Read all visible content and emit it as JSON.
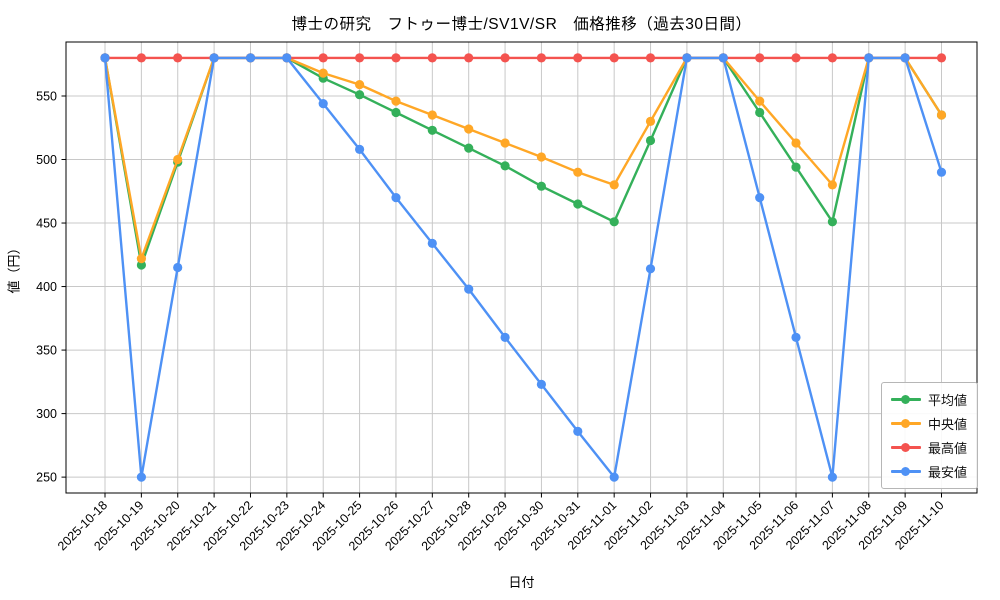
{
  "title": "博士の研究　フトゥー博士/SV1V/SR　価格推移（過去30日間）",
  "chart_data": {
    "type": "line",
    "x": [
      "2025-10-18",
      "2025-10-19",
      "2025-10-20",
      "2025-10-21",
      "2025-10-22",
      "2025-10-23",
      "2025-10-24",
      "2025-10-25",
      "2025-10-26",
      "2025-10-27",
      "2025-10-28",
      "2025-10-29",
      "2025-10-30",
      "2025-10-31",
      "2025-11-01",
      "2025-11-02",
      "2025-11-03",
      "2025-11-04",
      "2025-11-05",
      "2025-11-06",
      "2025-11-07",
      "2025-11-08",
      "2025-11-09",
      "2025-11-10"
    ],
    "series": [
      {
        "name": "平均値",
        "color": "#34b05a",
        "values": [
          580,
          417,
          498,
          580,
          580,
          580,
          564,
          551,
          537,
          523,
          509,
          495,
          479,
          465,
          451,
          515,
          580,
          580,
          537,
          494,
          451,
          580,
          580,
          535
        ]
      },
      {
        "name": "中央値",
        "color": "#ffa726",
        "values": [
          580,
          422,
          500,
          580,
          580,
          580,
          568,
          559,
          546,
          535,
          524,
          513,
          502,
          490,
          480,
          530,
          580,
          580,
          546,
          513,
          480,
          580,
          580,
          535
        ]
      },
      {
        "name": "最高値",
        "color": "#f4534f",
        "values": [
          580,
          580,
          580,
          580,
          580,
          580,
          580,
          580,
          580,
          580,
          580,
          580,
          580,
          580,
          580,
          580,
          580,
          580,
          580,
          580,
          580,
          580,
          580,
          580
        ]
      },
      {
        "name": "最安値",
        "color": "#4e91f5",
        "values": [
          580,
          250,
          415,
          580,
          580,
          580,
          544,
          508,
          470,
          434,
          398,
          360,
          323,
          286,
          250,
          414,
          580,
          580,
          470,
          360,
          250,
          580,
          580,
          490
        ]
      }
    ],
    "xlabel": "日付",
    "ylabel": "値（円）",
    "yticks": [
      250,
      300,
      350,
      400,
      450,
      500,
      550
    ],
    "ylim": [
      237.5,
      592.5
    ],
    "grid": true,
    "grid_color": "#c8c8c8",
    "legend_position": "lower right"
  }
}
